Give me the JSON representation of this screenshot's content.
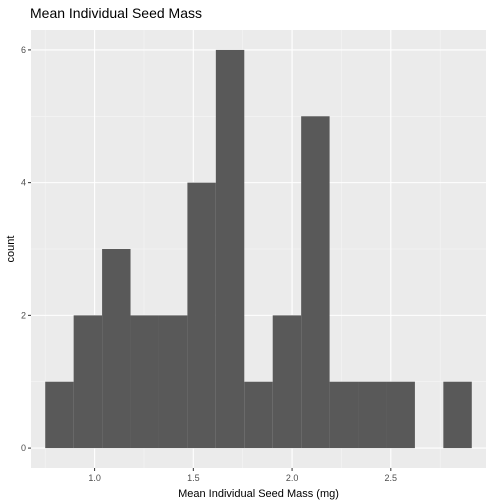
{
  "chart_data": {
    "type": "bar",
    "title": "Mean Individual Seed Mass",
    "xlabel": "Mean Individual Seed Mass (mg)",
    "ylabel": "count",
    "bin_width": 0.144,
    "bins": [
      {
        "start": 0.75,
        "count": 1
      },
      {
        "start": 0.894,
        "count": 2
      },
      {
        "start": 1.038,
        "count": 3
      },
      {
        "start": 1.182,
        "count": 2
      },
      {
        "start": 1.326,
        "count": 2
      },
      {
        "start": 1.47,
        "count": 4
      },
      {
        "start": 1.614,
        "count": 6
      },
      {
        "start": 1.758,
        "count": 1
      },
      {
        "start": 1.902,
        "count": 2
      },
      {
        "start": 2.046,
        "count": 5
      },
      {
        "start": 2.19,
        "count": 1
      },
      {
        "start": 2.334,
        "count": 1
      },
      {
        "start": 2.478,
        "count": 1
      },
      {
        "start": 2.622,
        "count": 0
      },
      {
        "start": 2.766,
        "count": 1
      }
    ],
    "x_ticks": [
      1.0,
      1.5,
      2.0,
      2.5
    ],
    "x_tick_labels": [
      "1.0",
      "1.5",
      "2.0",
      "2.5"
    ],
    "y_ticks": [
      0,
      2,
      4,
      6
    ],
    "y_tick_labels": [
      "0",
      "2",
      "4",
      "6"
    ],
    "xlim": [
      0.678,
      2.982
    ],
    "ylim": [
      -0.3,
      6.3
    ],
    "grid": true,
    "colors": {
      "panel": "#ebebeb",
      "grid_major": "#ffffff",
      "grid_minor": "#f5f5f5",
      "bar": "#595959",
      "tick": "#333333"
    }
  }
}
